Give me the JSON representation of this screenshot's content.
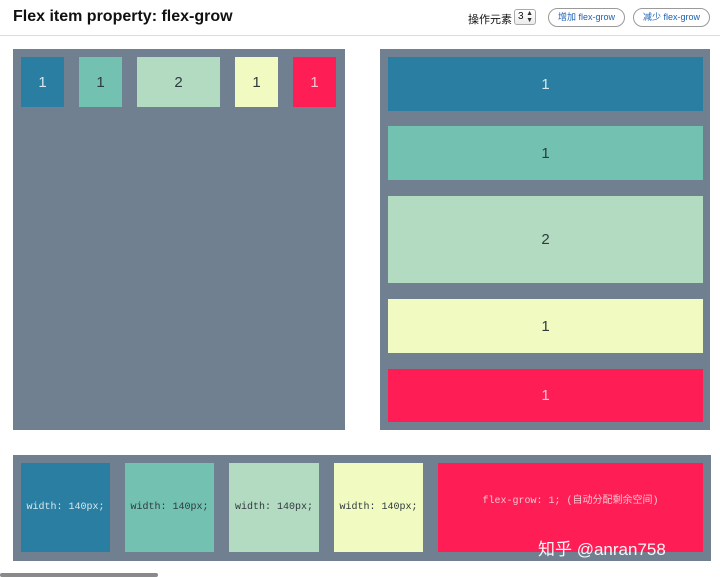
{
  "header": {
    "title": "Flex item property: flex-grow",
    "control_label": "操作元素",
    "selected_element": "3",
    "increase_button": "增加 flex-grow",
    "decrease_button": "减少 flex-grow"
  },
  "row_container": {
    "items": [
      {
        "label": "1"
      },
      {
        "label": "1"
      },
      {
        "label": "2"
      },
      {
        "label": "1"
      },
      {
        "label": "1"
      }
    ]
  },
  "column_container": {
    "items": [
      {
        "label": "1"
      },
      {
        "label": "1"
      },
      {
        "label": "2"
      },
      {
        "label": "1"
      },
      {
        "label": "1"
      }
    ]
  },
  "bottom_container": {
    "items": [
      {
        "text": "width: 140px;"
      },
      {
        "text": "width: 140px;"
      },
      {
        "text": "width: 140px;"
      },
      {
        "text": "width: 140px;"
      },
      {
        "text": "flex-grow: 1; (自动分配剩余空间)"
      }
    ]
  },
  "colors": {
    "panel": "#708090",
    "item1": "#2a7ea1",
    "item2": "#73c1b0",
    "item3": "#b3dbc1",
    "item4": "#f1fac0",
    "item5": "#fe1e55"
  },
  "watermark": "知乎 @anran758"
}
